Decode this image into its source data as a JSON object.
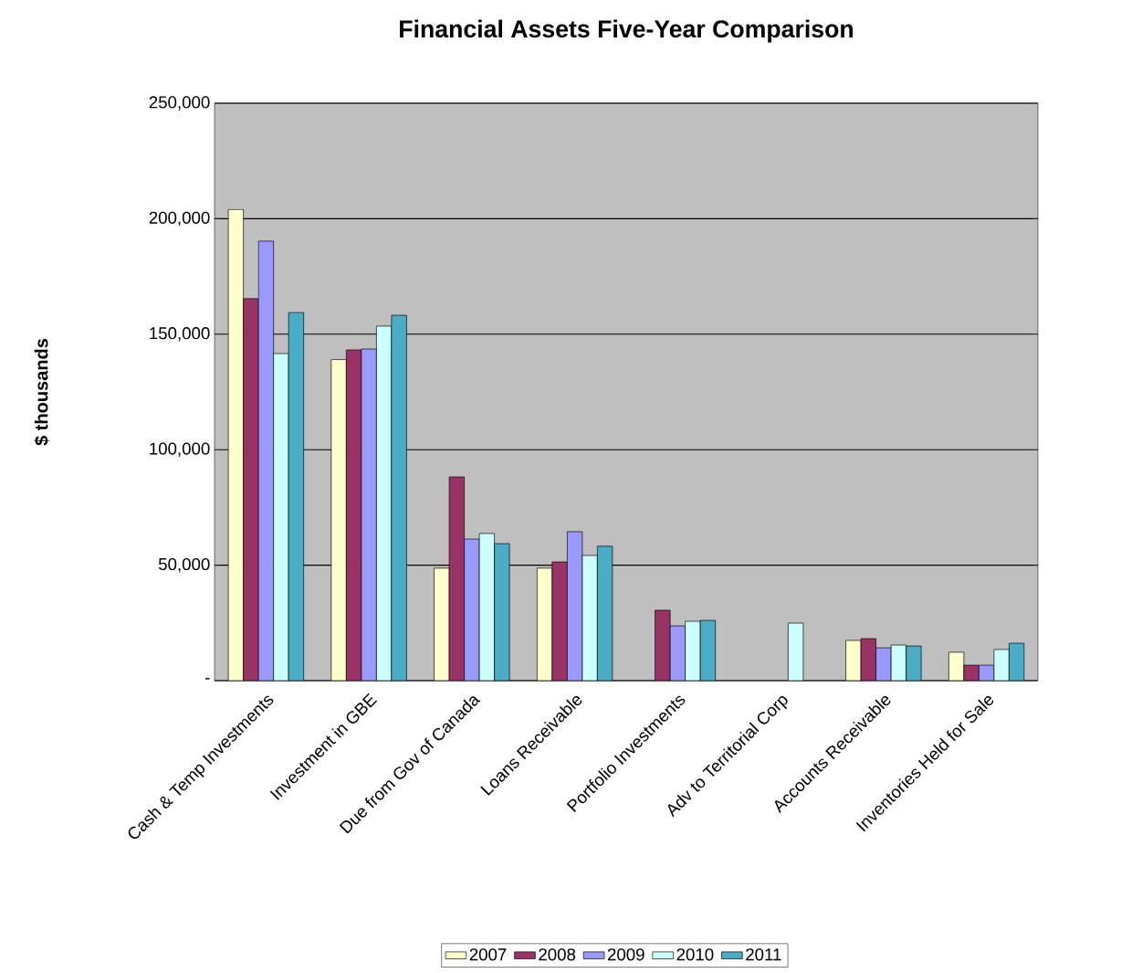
{
  "chart_data": {
    "type": "bar",
    "title": "Financial Assets Five-Year Comparison",
    "ylabel": "$ thousands",
    "categories": [
      "Cash & Temp Investments",
      "Investment in GBE",
      "Due from Gov of Canada",
      "Loans  Receivable",
      "Portfolio Investments",
      "Adv to Territorial Corp",
      "Accounts Receivable",
      "Inventories Held for Sale"
    ],
    "series": [
      {
        "name": "2007",
        "color": "#ffffcc",
        "values": [
          204000,
          139000,
          48700,
          48700,
          null,
          null,
          17400,
          12300
        ]
      },
      {
        "name": "2008",
        "color": "#993366",
        "values": [
          165400,
          143200,
          88200,
          51400,
          30500,
          null,
          18200,
          6700
        ]
      },
      {
        "name": "2009",
        "color": "#9999ff",
        "values": [
          190300,
          143600,
          61300,
          64500,
          23700,
          null,
          14200,
          6700
        ]
      },
      {
        "name": "2010",
        "color": "#ccffff",
        "values": [
          141600,
          153500,
          63700,
          54200,
          25700,
          24900,
          15400,
          13500
        ]
      },
      {
        "name": "2011",
        "color": "#4bacc6",
        "values": [
          159400,
          158200,
          59300,
          58200,
          26100,
          null,
          15000,
          16200
        ]
      }
    ],
    "ylim": [
      0,
      250000
    ],
    "yticks": [
      {
        "value": 0,
        "label": "-"
      },
      {
        "value": 50000,
        "label": "50,000"
      },
      {
        "value": 100000,
        "label": "100,000"
      },
      {
        "value": 150000,
        "label": "150,000"
      },
      {
        "value": 200000,
        "label": "200,000"
      },
      {
        "value": 250000,
        "label": "250,000"
      }
    ],
    "grid": "y",
    "legend": "bottom"
  }
}
